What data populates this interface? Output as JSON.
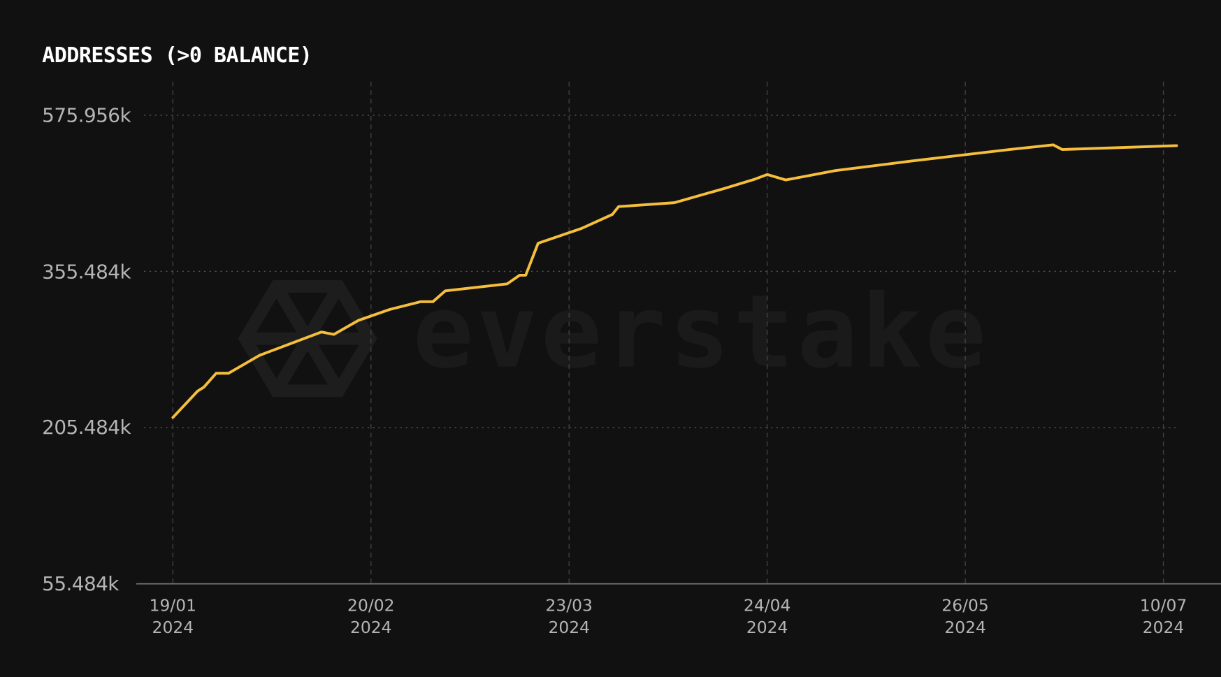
{
  "chart_data": {
    "type": "line",
    "title": "ADDRESSES (>0 BALANCE)",
    "watermark": "everstake",
    "color": "#f5bf3c",
    "x": [
      "2024-01-19",
      "2024-01-23",
      "2024-01-24",
      "2024-01-26",
      "2024-01-28",
      "2024-02-02",
      "2024-02-08",
      "2024-02-12",
      "2024-02-14",
      "2024-02-18",
      "2024-02-23",
      "2024-02-28",
      "2024-03-01",
      "2024-03-03",
      "2024-03-13",
      "2024-03-15",
      "2024-03-16",
      "2024-03-18",
      "2024-03-25",
      "2024-03-30",
      "2024-03-31",
      "2024-04-09",
      "2024-04-17",
      "2024-04-22",
      "2024-04-24",
      "2024-04-27",
      "2024-05-05",
      "2024-05-17",
      "2024-06-05",
      "2024-06-15",
      "2024-06-17",
      "2024-07-13"
    ],
    "values": [
      215200,
      240600,
      244300,
      257700,
      257700,
      274900,
      288300,
      297300,
      295000,
      308500,
      318900,
      326400,
      326400,
      336800,
      343500,
      351800,
      351800,
      395200,
      416100,
      435900,
      447000,
      452500,
      472300,
      485600,
      492200,
      484500,
      497700,
      510900,
      527500,
      534100,
      527500,
      533000
    ],
    "ylim": [
      55484,
      575956
    ],
    "yticks": [
      {
        "value": 55484,
        "label": "55.484k"
      },
      {
        "value": 205484,
        "label": "205.484k"
      },
      {
        "value": 355484,
        "label": "355.484k"
      },
      {
        "value": 575956,
        "label": "575.956k"
      }
    ],
    "xticks": [
      {
        "value": "2024-01-19",
        "label": "19/01\n2024"
      },
      {
        "value": "2024-02-20",
        "label": "20/02\n2024"
      },
      {
        "value": "2024-03-23",
        "label": "23/03\n2024"
      },
      {
        "value": "2024-04-24",
        "label": "24/04\n2024"
      },
      {
        "value": "2024-05-26",
        "label": "26/05\n2024"
      },
      {
        "value": "2024-07-10",
        "label": "10/07\n2024"
      }
    ],
    "grid": true
  }
}
